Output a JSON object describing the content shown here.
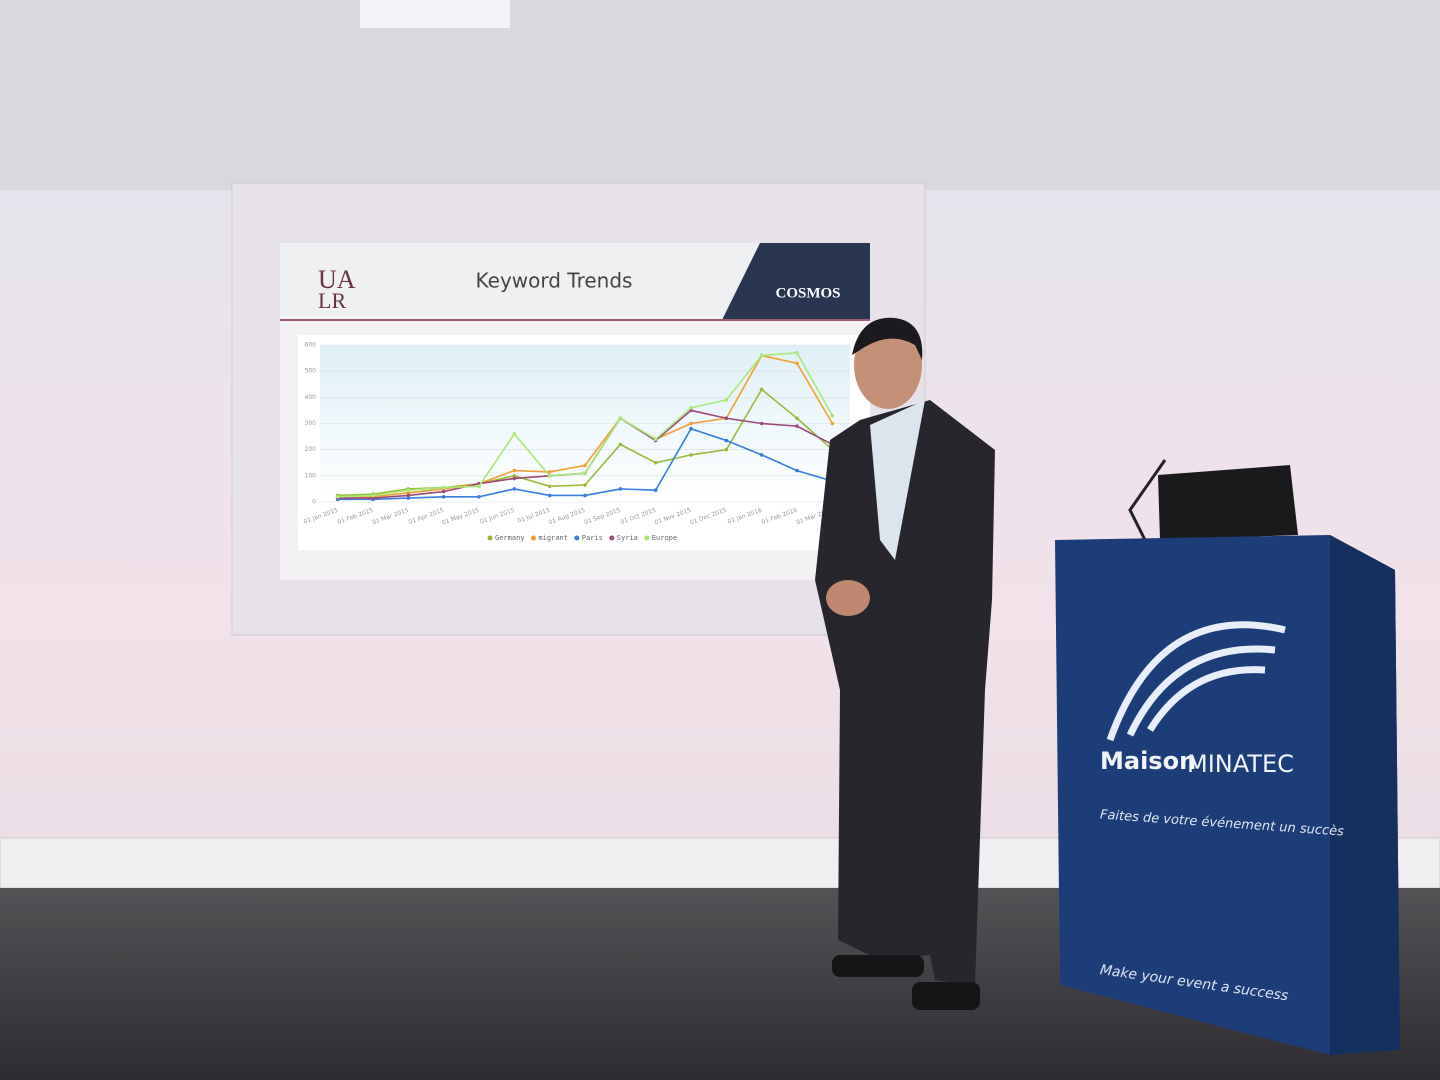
{
  "slide": {
    "logo": [
      "UA",
      "LR"
    ],
    "brand": "COSMOS"
  },
  "chart_data": {
    "type": "line",
    "title": "Keyword Trends",
    "categories": [
      "01 Jan 2015",
      "01 Feb 2015",
      "01 Mar 2015",
      "01 Apr 2015",
      "01 May 2015",
      "01 Jun 2015",
      "01 Jul 2015",
      "01 Aug 2015",
      "01 Sep 2015",
      "01 Oct 2015",
      "01 Nov 2015",
      "01 Dec 2015",
      "01 Jan 2016",
      "01 Feb 2016",
      "01 Mar 2016"
    ],
    "series": [
      {
        "name": "Germany",
        "color": "#9aba3c",
        "values": [
          25,
          30,
          50,
          55,
          70,
          100,
          60,
          65,
          220,
          150,
          180,
          200,
          430,
          320,
          200
        ]
      },
      {
        "name": "migrant",
        "color": "#f0a030",
        "values": [
          20,
          20,
          35,
          50,
          70,
          120,
          115,
          140,
          320,
          240,
          300,
          320,
          560,
          530,
          300
        ]
      },
      {
        "name": "Paris",
        "color": "#3a7ce0",
        "values": [
          10,
          10,
          15,
          20,
          20,
          50,
          25,
          25,
          50,
          45,
          280,
          235,
          180,
          120,
          80
        ]
      },
      {
        "name": "Syria",
        "color": "#9c4a78",
        "values": [
          15,
          15,
          25,
          40,
          70,
          90,
          100,
          110,
          320,
          235,
          350,
          320,
          300,
          290,
          220
        ]
      },
      {
        "name": "Europe",
        "color": "#a8e878",
        "values": [
          20,
          25,
          45,
          55,
          60,
          260,
          100,
          110,
          320,
          240,
          360,
          390,
          560,
          570,
          330
        ]
      }
    ],
    "ylim": [
      0,
      600
    ],
    "yticks": [
      0,
      100,
      200,
      300,
      400,
      500,
      600
    ],
    "grid": true,
    "legend": "bottom"
  },
  "podium": {
    "brand": [
      "Maison",
      "MINATEC"
    ],
    "slogan_fr": "Faites de votre événement un succès",
    "slogan_en": "Make your event a success"
  }
}
